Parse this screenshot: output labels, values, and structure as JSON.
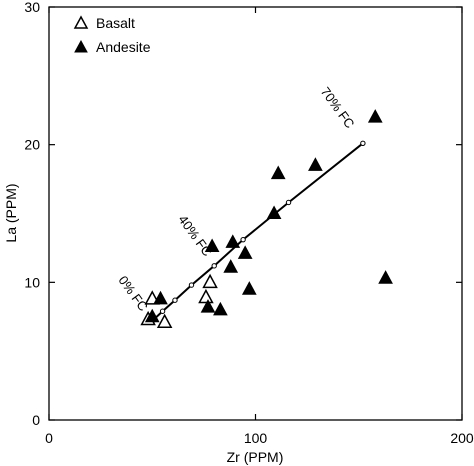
{
  "chart_data": {
    "type": "scatter",
    "title": "",
    "xlabel": "Zr (PPM)",
    "ylabel": "La (PPM)",
    "xlim": [
      0,
      200
    ],
    "ylim": [
      0,
      30
    ],
    "x_ticks": [
      0,
      100,
      200
    ],
    "y_ticks": [
      0,
      10,
      20,
      30
    ],
    "grid": false,
    "legend_position": "top-left",
    "series": [
      {
        "name": "Basalt",
        "marker": "open-triangle",
        "color": "#000000",
        "points": [
          {
            "x": 48,
            "y": 7.3
          },
          {
            "x": 50,
            "y": 8.8
          },
          {
            "x": 56,
            "y": 7.1
          },
          {
            "x": 76,
            "y": 8.9
          },
          {
            "x": 78,
            "y": 10.0
          }
        ]
      },
      {
        "name": "Andesite",
        "marker": "filled-triangle",
        "color": "#000000",
        "points": [
          {
            "x": 50,
            "y": 7.5
          },
          {
            "x": 54,
            "y": 8.8
          },
          {
            "x": 77,
            "y": 8.2
          },
          {
            "x": 79,
            "y": 12.6
          },
          {
            "x": 83,
            "y": 8.0
          },
          {
            "x": 88,
            "y": 11.1
          },
          {
            "x": 89,
            "y": 12.9
          },
          {
            "x": 95,
            "y": 12.1
          },
          {
            "x": 97,
            "y": 9.5
          },
          {
            "x": 109,
            "y": 15.0
          },
          {
            "x": 111,
            "y": 17.9
          },
          {
            "x": 129,
            "y": 18.5
          },
          {
            "x": 158,
            "y": 22.0
          },
          {
            "x": 163,
            "y": 10.3
          }
        ]
      }
    ],
    "model_curve": {
      "points": [
        {
          "x": 50,
          "y": 7.2
        },
        {
          "x": 55,
          "y": 7.9
        },
        {
          "x": 61,
          "y": 8.7
        },
        {
          "x": 69,
          "y": 9.8
        },
        {
          "x": 80,
          "y": 11.2
        },
        {
          "x": 94,
          "y": 13.1
        },
        {
          "x": 116,
          "y": 15.8
        },
        {
          "x": 152,
          "y": 20.1
        }
      ],
      "labels": [
        {
          "text": "0% FC",
          "x": 39,
          "y": 9.0
        },
        {
          "text": "40% FC",
          "x": 69,
          "y": 13.2
        },
        {
          "text": "70% FC",
          "x": 138,
          "y": 22.5
        }
      ]
    }
  }
}
